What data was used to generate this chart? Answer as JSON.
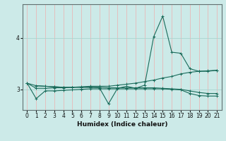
{
  "xlabel": "Humidex (Indice chaleur)",
  "background_color": "#cceae8",
  "grid_color_v": "#e8b8b8",
  "grid_color_h": "#aad4d0",
  "line_color": "#1a6b5a",
  "spine_color": "#607070",
  "xlim": [
    -0.5,
    21.5
  ],
  "ylim": [
    2.6,
    4.65
  ],
  "yticks": [
    3,
    4
  ],
  "xticks": [
    0,
    1,
    2,
    3,
    4,
    5,
    6,
    7,
    8,
    9,
    10,
    11,
    12,
    13,
    14,
    15,
    16,
    17,
    18,
    19,
    20,
    21
  ],
  "series": [
    {
      "x": [
        0,
        1,
        2,
        3,
        4,
        5,
        6,
        7,
        8,
        9,
        10,
        11,
        12,
        13,
        14,
        15,
        16,
        17,
        18,
        19,
        20,
        21
      ],
      "y": [
        3.12,
        2.82,
        2.97,
        2.97,
        2.98,
        2.99,
        3.0,
        3.01,
        3.01,
        3.01,
        3.01,
        3.01,
        3.01,
        3.01,
        3.01,
        3.01,
        3.0,
        2.99,
        2.92,
        2.88,
        2.87,
        2.87
      ]
    },
    {
      "x": [
        0,
        1,
        2,
        3,
        4,
        5,
        6,
        7,
        8,
        9,
        10,
        11,
        12,
        13,
        14,
        15,
        16,
        17,
        18,
        19,
        20,
        21
      ],
      "y": [
        3.12,
        3.02,
        3.02,
        3.03,
        3.03,
        3.04,
        3.05,
        3.06,
        3.06,
        3.06,
        3.08,
        3.1,
        3.12,
        3.15,
        3.18,
        3.22,
        3.25,
        3.3,
        3.33,
        3.35,
        3.36,
        3.37
      ]
    },
    {
      "x": [
        0,
        1,
        2,
        3,
        4,
        5,
        6,
        7,
        8,
        9,
        10,
        11,
        12,
        13,
        14,
        15,
        16,
        17,
        18,
        19,
        20,
        21
      ],
      "y": [
        3.12,
        3.07,
        3.06,
        3.05,
        3.04,
        3.04,
        3.04,
        3.04,
        3.04,
        3.03,
        3.03,
        3.03,
        3.03,
        3.03,
        3.03,
        3.02,
        3.01,
        3.0,
        2.97,
        2.94,
        2.92,
        2.92
      ]
    },
    {
      "x": [
        1,
        2,
        3,
        4,
        5,
        6,
        7,
        8,
        9,
        10,
        11,
        12,
        13,
        14,
        15,
        16,
        17,
        18,
        19,
        20,
        21
      ],
      "y": [
        3.07,
        3.06,
        3.05,
        3.04,
        3.04,
        3.04,
        3.04,
        3.03,
        2.72,
        3.02,
        3.06,
        3.02,
        3.08,
        4.02,
        4.42,
        3.72,
        3.7,
        3.4,
        3.35,
        3.35,
        3.37
      ]
    }
  ]
}
